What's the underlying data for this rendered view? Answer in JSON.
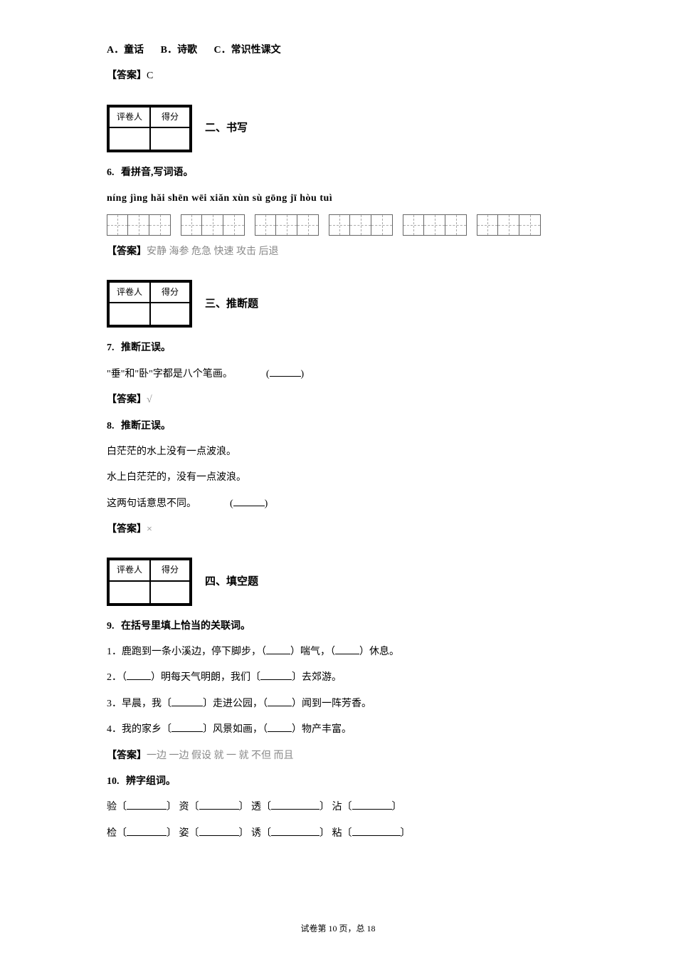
{
  "mc": {
    "optA_label": "A．",
    "optA_text": "童话",
    "optB_label": "B．",
    "optB_text": "诗歌",
    "optC_label": "C．",
    "optC_text": "常识性课文"
  },
  "ans_label": "【答案】",
  "ans5": "C",
  "grader": {
    "col1": "评卷人",
    "col2": "得分"
  },
  "sec2": "二、书写",
  "q6": {
    "num": "6.",
    "title": "看拼音,写词语。",
    "pinyin": "níng jìng hǎi shēn   wēi xiǎn   xùn sù        gōng jī     hòu tuì",
    "answer": "安静 海参 危急 快速 攻击 后退"
  },
  "sec3": "三、推断题",
  "q7": {
    "num": "7.",
    "title": "推断正误。",
    "body_a": "\"",
    "body_b": "垂",
    "body_c": "\"和\"",
    "body_d": "卧",
    "body_e": "\"字都是八个笔画。",
    "answer": "√"
  },
  "q8": {
    "num": "8.",
    "title": "推断正误。",
    "l1": "白茫茫的水上没有一点波浪。",
    "l2": "水上白茫茫的，没有一点波浪。",
    "l3": "这两句话意思不同。",
    "answer": "×"
  },
  "sec4": "四、填空题",
  "q9": {
    "num": "9.",
    "title": "在括号里填上恰当的关联词。",
    "i1a": "1．鹿跑到一条小溪边，停下脚步，（",
    "i1b": "）喘气，（",
    "i1c": "）休息。",
    "i2a": "2．（",
    "i2b": "）明每天气明朗，我们〔",
    "i2c": "〕去郊游。",
    "i3a": "3．早晨，我〔",
    "i3b": "〕走进公园，（",
    "i3c": "）闻到一阵芳香。",
    "i4a": "4．我的家乡〔",
    "i4b": "〕风景如画，（",
    "i4c": "）物产丰富。",
    "answer": "一边      一边      假设      就      一      就      不但      而且"
  },
  "q10": {
    "num": "10.",
    "title": "辨字组词。",
    "r1": {
      "a": "验〔",
      "b": "〕   资〔",
      "c": "〕     透〔",
      "d": "〕     沾〔",
      "e": "〕"
    },
    "r2": {
      "a": "检〔",
      "b": "〕   姿〔",
      "c": "〕     诱〔",
      "d": "〕     粘〔",
      "e": "〕"
    }
  },
  "footer": {
    "a": "试卷第 ",
    "pg": "10",
    "b": " 页，总 ",
    "total": "18"
  }
}
